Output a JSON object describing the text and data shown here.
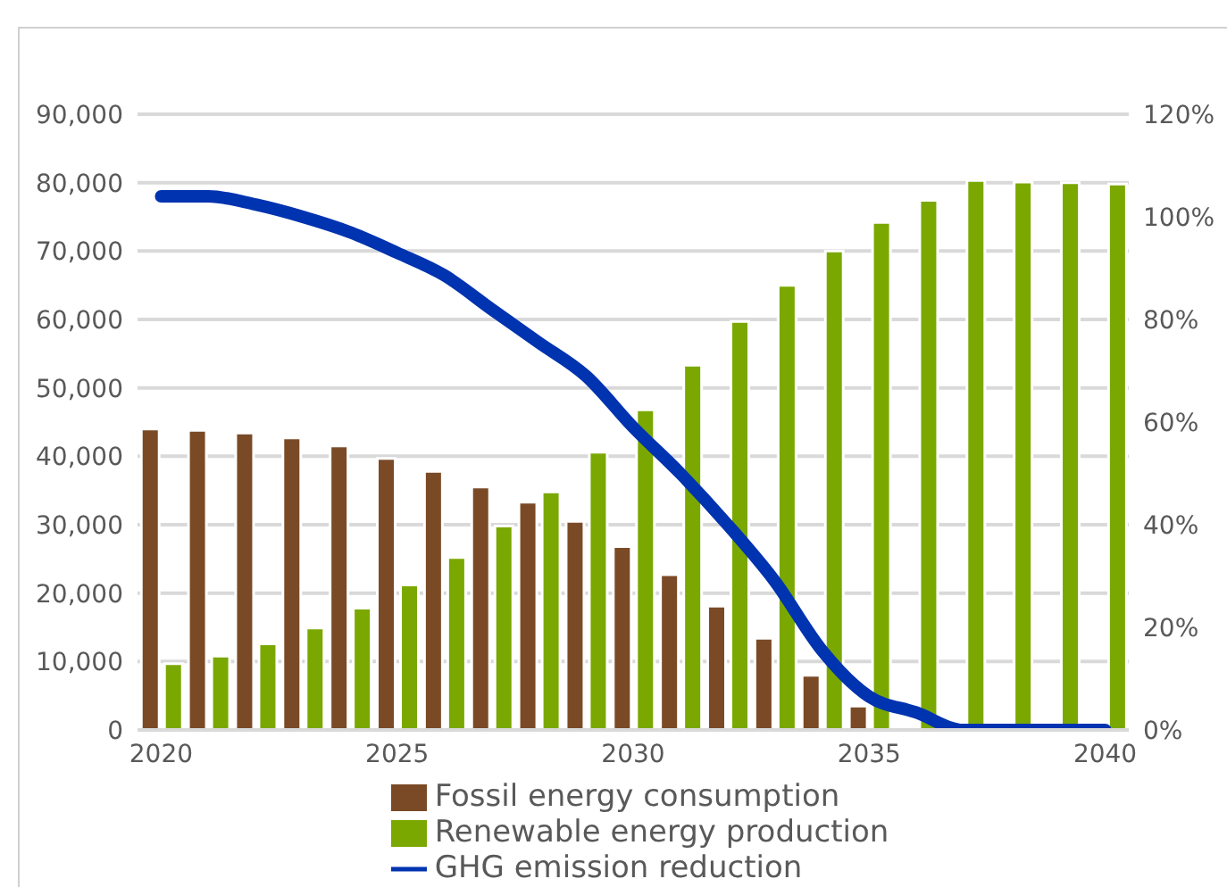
{
  "chart_data": {
    "type": "bar",
    "categories": [
      "2020",
      null,
      null,
      null,
      null,
      "2025",
      null,
      null,
      null,
      null,
      "2030",
      null,
      null,
      null,
      null,
      "2035",
      null,
      null,
      null,
      null,
      "2040"
    ],
    "series": [
      {
        "name": "Fossil energy consumption",
        "color": "#7a4a26",
        "values": [
          44000,
          43800,
          43400,
          42700,
          41500,
          39700,
          37800,
          35500,
          33300,
          30500,
          26800,
          22700,
          18100,
          13400,
          8000,
          3500,
          null,
          0,
          0,
          0,
          0
        ]
      },
      {
        "name": "Renewable energy production",
        "color": "#7aa800",
        "values": [
          9700,
          10800,
          12600,
          14900,
          17800,
          21200,
          25200,
          29800,
          34800,
          40600,
          46800,
          53300,
          59700,
          65000,
          70000,
          74200,
          77400,
          80300,
          80100,
          80000,
          79800
        ]
      },
      {
        "name": "GHG emission reduction",
        "type": "line",
        "axis": "y2",
        "color": "#0033b0",
        "values": [
          104,
          104,
          102.4,
          100,
          97,
          93,
          88.6,
          82,
          75.5,
          69,
          59,
          50,
          40,
          29,
          15.5,
          6.5,
          3.4,
          0,
          0,
          0,
          0
        ]
      }
    ],
    "ylim": [
      0,
      90000
    ],
    "yticks": [
      0,
      {
        "value": 10000,
        "label": "10,000"
      },
      {
        "value": 20000,
        "label": "20,000"
      },
      {
        "value": 30000,
        "label": "30,000"
      },
      {
        "value": 40000,
        "label": "40,000"
      },
      {
        "value": 50000,
        "label": "50,000"
      },
      {
        "value": 60000,
        "label": "60,000"
      },
      {
        "value": 70000,
        "label": "70,000"
      },
      {
        "value": 80000,
        "label": "80,000"
      },
      {
        "value": 90000,
        "label": "90,000"
      }
    ],
    "y2lim": [
      0,
      120
    ],
    "y2ticks": [
      {
        "value": 0,
        "label": "0%"
      },
      {
        "value": 20,
        "label": "20%"
      },
      {
        "value": 40,
        "label": "40%"
      },
      {
        "value": 60,
        "label": "60%"
      },
      {
        "value": 80,
        "label": "80%"
      },
      {
        "value": 100,
        "label": "100%"
      },
      {
        "value": 120,
        "label": "120%"
      }
    ],
    "grid": "y",
    "legend": "bottom",
    "marker": "none",
    "line_style": "solid"
  }
}
